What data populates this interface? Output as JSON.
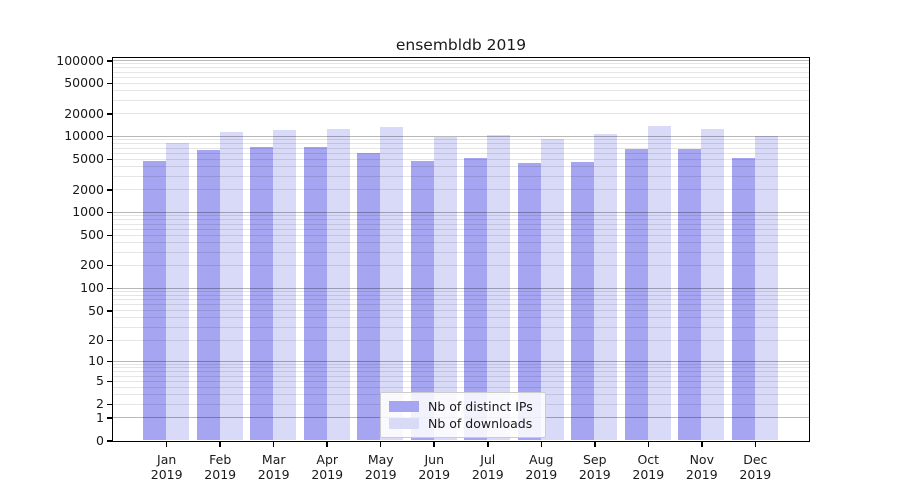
{
  "chart_data": {
    "type": "bar",
    "title": "ensembldb 2019",
    "year_label": "2019",
    "categories": [
      "Jan",
      "Feb",
      "Mar",
      "Apr",
      "May",
      "Jun",
      "Jul",
      "Aug",
      "Sep",
      "Oct",
      "Nov",
      "Dec"
    ],
    "series": [
      {
        "name": "Nb of distinct IPs",
        "color": "#a5a5f2",
        "values": [
          4650,
          6500,
          7100,
          7200,
          5900,
          4750,
          5100,
          4400,
          4600,
          6800,
          6700,
          5200
        ]
      },
      {
        "name": "Nb of downloads",
        "color": "#d9d9f8",
        "values": [
          8200,
          11300,
          11900,
          12300,
          13200,
          9700,
          10400,
          9000,
          10600,
          13700,
          12500,
          9900
        ]
      }
    ],
    "y_ticks": [
      100000,
      50000,
      20000,
      10000,
      5000,
      2000,
      1000,
      500,
      200,
      100,
      50,
      20,
      10,
      5,
      2,
      1,
      0
    ],
    "ylabel": "",
    "xlabel": "",
    "yscale": "log(value+1)",
    "ylim": [
      0,
      113000
    ],
    "grid": "both",
    "legend_position": "lower center"
  }
}
